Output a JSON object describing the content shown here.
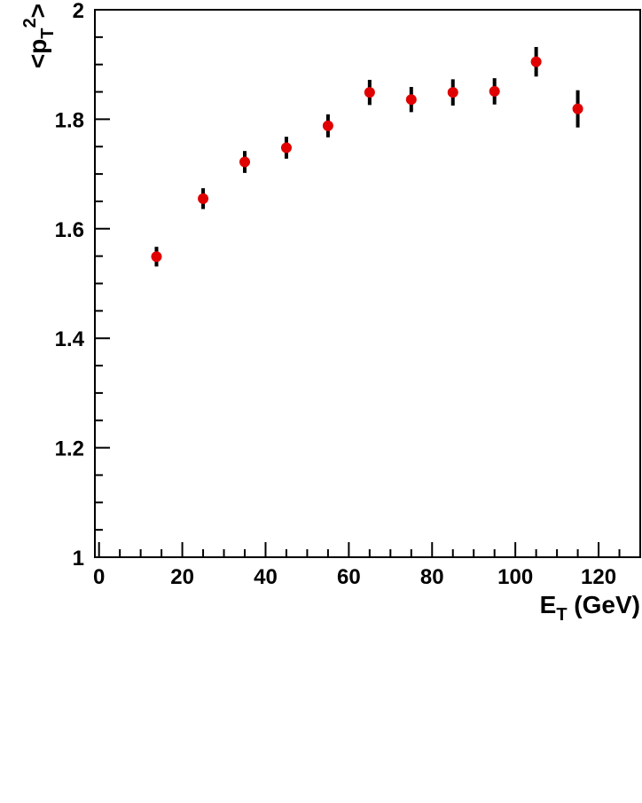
{
  "chart_data": {
    "type": "scatter",
    "xlabel": {
      "base": "E",
      "sub": "T",
      "rest": " (GeV)"
    },
    "ylabel": {
      "open": "<p",
      "sub": "T",
      "sup": "2",
      "close": ">"
    },
    "xlim": [
      -1,
      130
    ],
    "ylim": [
      1.0,
      2.0
    ],
    "x_ticks": [
      0,
      20,
      40,
      60,
      80,
      100,
      120
    ],
    "x_tick_labels": [
      "0",
      "20",
      "40",
      "60",
      "80",
      "100",
      "120"
    ],
    "y_ticks": [
      1.0,
      1.2,
      1.4,
      1.6,
      1.8,
      2.0
    ],
    "y_tick_labels": [
      "1",
      "1.2",
      "1.4",
      "1.6",
      "1.8",
      "2"
    ],
    "grid": false,
    "series": [
      {
        "marker_color": "#e00000",
        "errorbar_color": "#000000",
        "x": [
          13.8,
          25,
          35,
          45,
          55,
          65,
          75,
          85,
          95,
          105,
          115
        ],
        "y": [
          1.549,
          1.655,
          1.722,
          1.748,
          1.788,
          1.849,
          1.836,
          1.849,
          1.851,
          1.905,
          1.819
        ],
        "err": [
          0.018,
          0.019,
          0.02,
          0.02,
          0.021,
          0.023,
          0.023,
          0.024,
          0.024,
          0.027,
          0.034
        ]
      }
    ]
  }
}
